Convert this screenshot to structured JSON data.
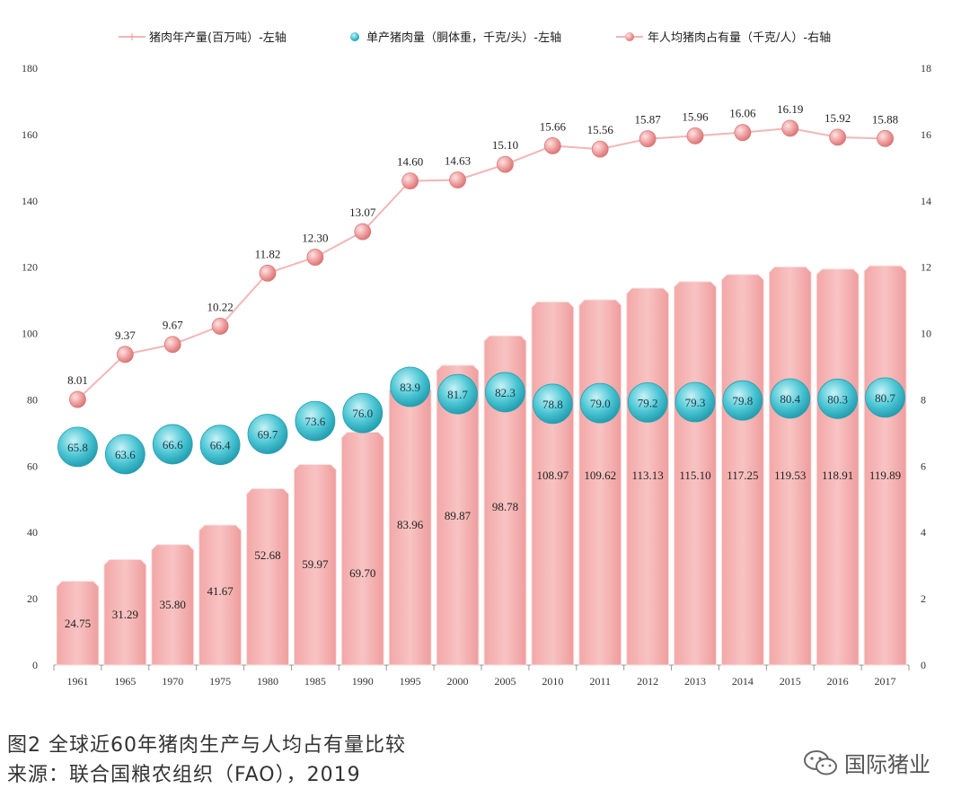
{
  "chart_data": {
    "type": "bar",
    "categories": [
      "1961",
      "1965",
      "1970",
      "1975",
      "1980",
      "1985",
      "1990",
      "1995",
      "2000",
      "2005",
      "2010",
      "2011",
      "2012",
      "2013",
      "2014",
      "2015",
      "2016",
      "2017"
    ],
    "series": [
      {
        "name": "猪肉年产量(百万吨）-左轴",
        "type": "bar",
        "axis": "left",
        "values": [
          24.75,
          31.29,
          35.8,
          41.67,
          52.68,
          59.97,
          69.7,
          83.96,
          89.87,
          98.78,
          108.97,
          109.62,
          113.13,
          115.1,
          117.25,
          119.53,
          118.91,
          119.89
        ],
        "labels": [
          "24.75",
          "31.29",
          "35.80",
          "41.67",
          "52.68",
          "59.97",
          "69.70",
          "83.96",
          "89.87",
          "98.78",
          "108.97",
          "109.62",
          "113.13",
          "115.10",
          "117.25",
          "119.53",
          "118.91",
          "119.89"
        ]
      },
      {
        "name": "单产猪肉量（胴体重，千克/头）-左轴",
        "type": "bubble",
        "axis": "left",
        "values": [
          65.8,
          63.6,
          66.6,
          66.4,
          69.7,
          73.6,
          76.0,
          83.9,
          81.7,
          82.3,
          78.8,
          79.0,
          79.2,
          79.3,
          79.8,
          80.4,
          80.3,
          80.7
        ],
        "labels": [
          "65.8",
          "63.6",
          "66.6",
          "66.4",
          "69.7",
          "73.6",
          "76.0",
          "83.9",
          "81.7",
          "82.3",
          "78.8",
          "79.0",
          "79.2",
          "79.3",
          "79.8",
          "80.4",
          "80.3",
          "80.7"
        ]
      },
      {
        "name": "年人均猪肉占有量（千克/人）-右轴",
        "type": "line",
        "axis": "right",
        "values": [
          8.01,
          9.37,
          9.67,
          10.22,
          11.82,
          12.3,
          13.07,
          14.6,
          14.63,
          15.1,
          15.66,
          15.56,
          15.87,
          15.96,
          16.06,
          16.19,
          15.92,
          15.88
        ],
        "labels": [
          "8.01",
          "9.37",
          "9.67",
          "10.22",
          "11.82",
          "12.30",
          "13.07",
          "14.60",
          "14.63",
          "15.10",
          "15.66",
          "15.56",
          "15.87",
          "15.96",
          "16.06",
          "16.19",
          "15.92",
          "15.88"
        ]
      }
    ],
    "ylim_left": [
      0,
      180
    ],
    "ylim_right": [
      0,
      18
    ],
    "yticks_left": [
      "0",
      "20",
      "40",
      "60",
      "80",
      "100",
      "120",
      "140",
      "160",
      "180"
    ],
    "yticks_right": [
      "0",
      "2",
      "4",
      "6",
      "8",
      "10",
      "12",
      "14",
      "16",
      "18"
    ],
    "legend_position": "top",
    "grid": false
  },
  "colors": {
    "bar": "#f0a0a0",
    "bar_top": "#fbd5d5",
    "bubble": "#3bbccc",
    "bubble_light": "#c8f2f6",
    "line": "#f2b6b6",
    "marker": "#e98b8b",
    "marker_light": "#fde3e3"
  },
  "caption": {
    "line1": "图2 全球近60年猪肉生产与人均占有量比较",
    "line2": "来源：联合国粮农组织（FAO），2019"
  },
  "watermark": {
    "icon": "wechat-icon",
    "text": "国际猪业"
  }
}
